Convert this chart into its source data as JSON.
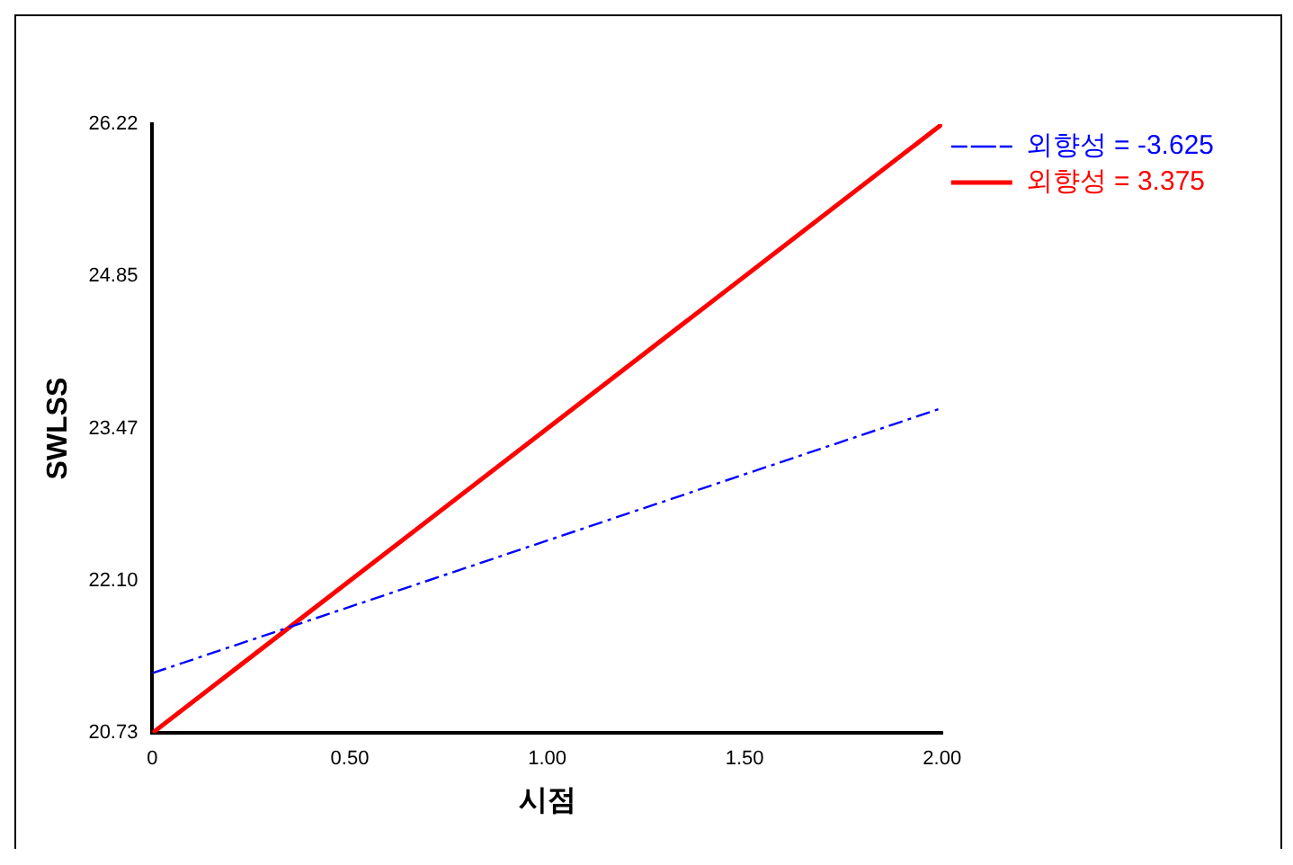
{
  "chart_data": {
    "type": "line",
    "xlabel": "시점",
    "ylabel": "SWLSS",
    "x": [
      0,
      2
    ],
    "series": [
      {
        "name": "외향성 = -3.625",
        "color": "#0000ff",
        "values": [
          21.27,
          23.66
        ],
        "line_style": "dashed"
      },
      {
        "name": "외향성 = 3.375",
        "color": "#ff0000",
        "values": [
          20.73,
          26.22
        ],
        "line_style": "solid"
      }
    ],
    "xlim": [
      0,
      2
    ],
    "xticks": [
      0,
      {
        "value": 0.5,
        "label": "0.50"
      },
      {
        "value": 1,
        "label": "1.00"
      },
      {
        "value": 1.5,
        "label": "1.50"
      },
      {
        "value": 2,
        "label": "2.00"
      }
    ],
    "ylim": [
      20.73,
      26.22
    ],
    "yticks": [
      {
        "value": 20.73,
        "label": "20.73"
      },
      {
        "value": 22.1,
        "label": "22.10"
      },
      {
        "value": 23.47,
        "label": "23.47"
      },
      {
        "value": 24.85,
        "label": "24.85"
      },
      {
        "value": 26.22,
        "label": "26.22"
      }
    ],
    "grid": false,
    "legend": "top right",
    "marker": "none"
  }
}
